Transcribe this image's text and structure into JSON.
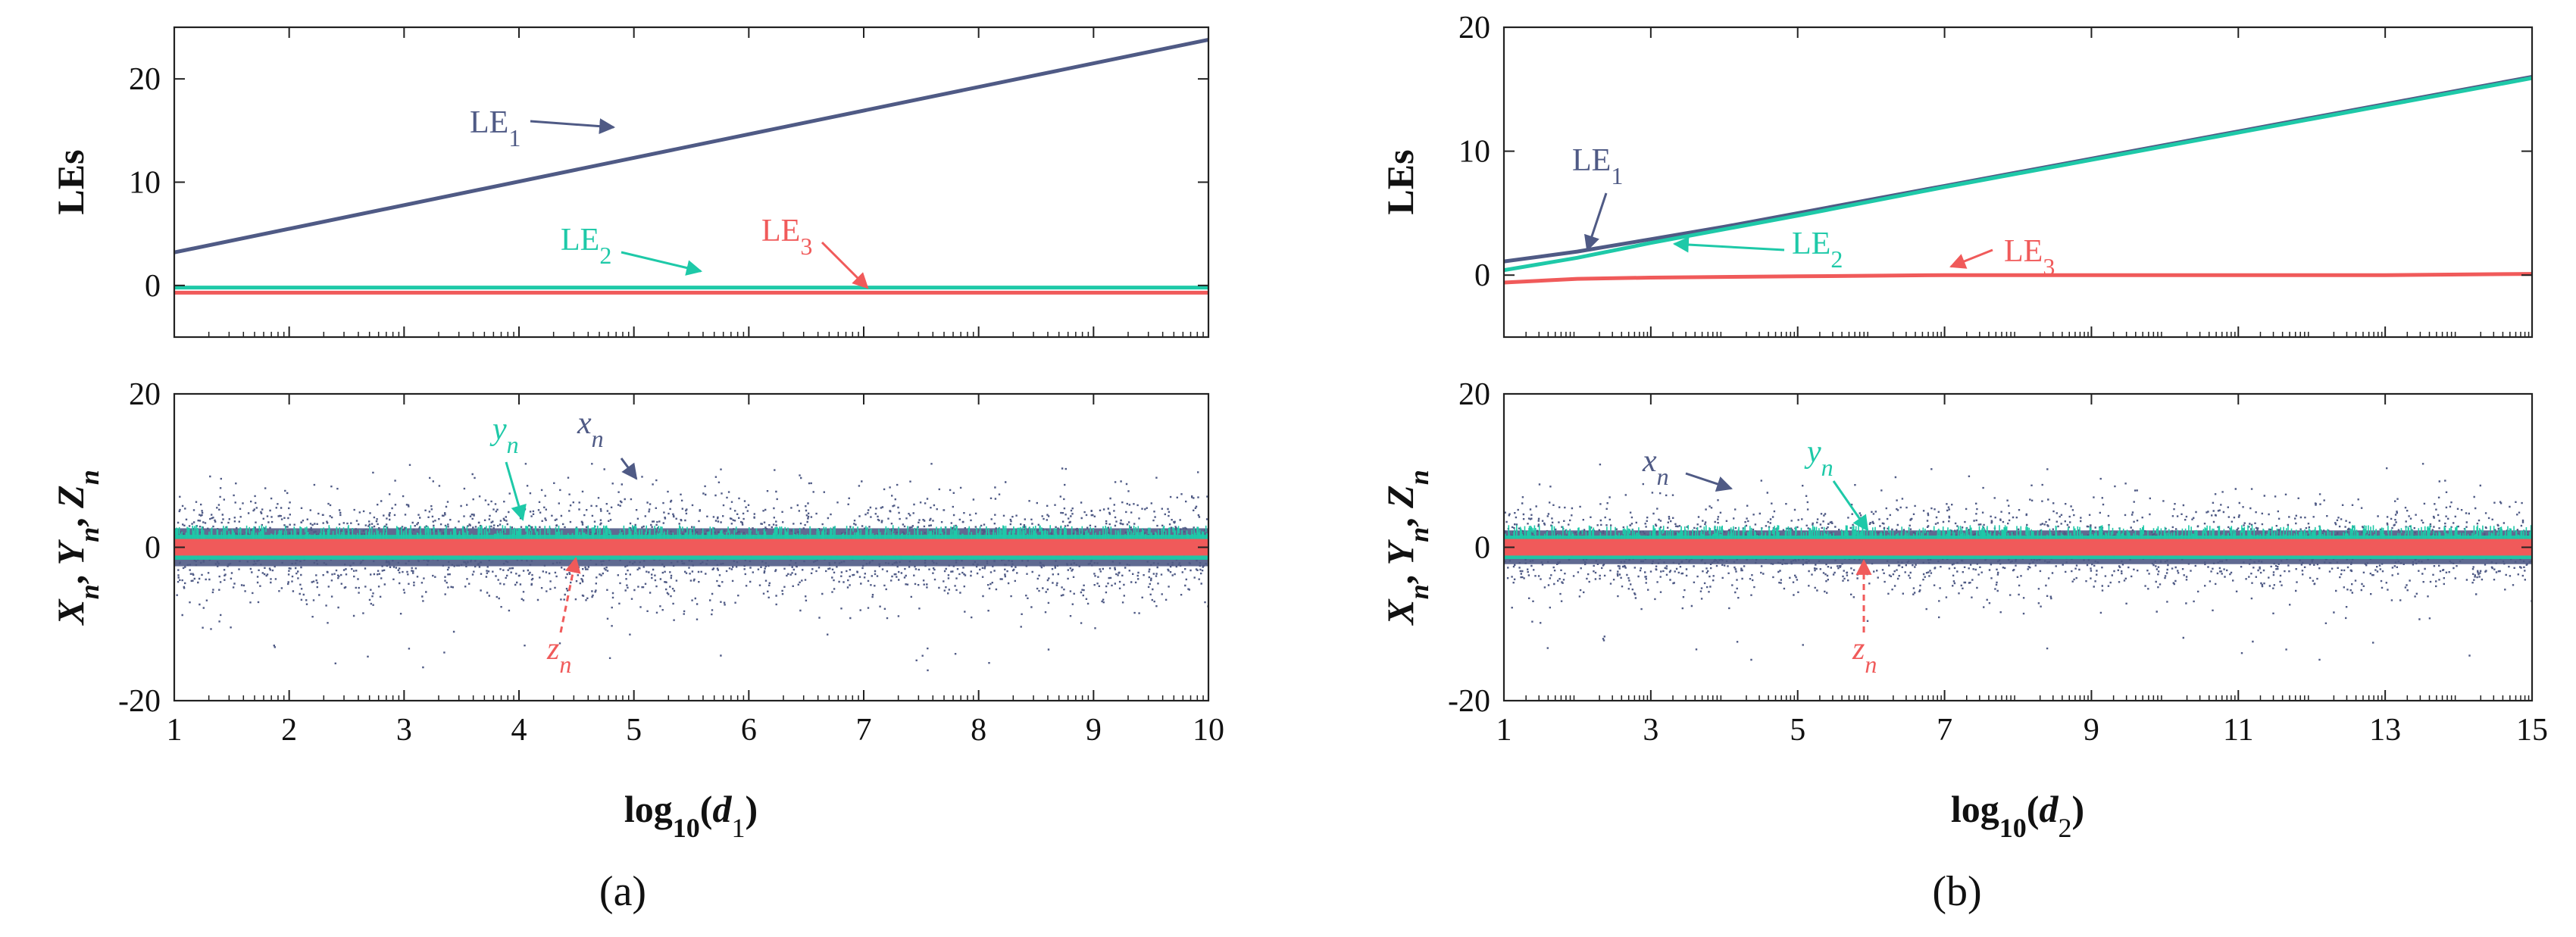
{
  "colors": {
    "x": "#4f5a85",
    "y": "#1ec9a8",
    "z": "#f05a5a",
    "axis": "#222222"
  },
  "panels": [
    {
      "id": "a",
      "caption": "(a)",
      "xlabel": {
        "pre": "log",
        "sub": "10",
        "open": "(d",
        "var_sub": "1",
        "close": ")"
      },
      "chart_data": [
        {
          "type": "line",
          "ylabel": "LEs",
          "xlim": [
            1,
            10
          ],
          "ylim": [
            -5,
            25
          ],
          "yticks": [
            0,
            10,
            20
          ],
          "xticks": [
            1,
            2,
            3,
            4,
            5,
            6,
            7,
            8,
            9,
            10
          ],
          "series": [
            {
              "name": "LE1",
              "x": [
                1,
                10
              ],
              "values": [
                3.2,
                23.8
              ]
            },
            {
              "name": "LE2",
              "x": [
                1,
                10
              ],
              "values": [
                -0.2,
                -0.2
              ]
            },
            {
              "name": "LE3",
              "x": [
                1,
                10
              ],
              "values": [
                -0.7,
                -0.7
              ]
            }
          ],
          "annotations": [
            {
              "base": "LE",
              "sub": "1",
              "series": "LE1"
            },
            {
              "base": "LE",
              "sub": "2",
              "series": "LE2"
            },
            {
              "base": "LE",
              "sub": "3",
              "series": "LE3"
            }
          ]
        },
        {
          "type": "scatter",
          "ylabel": "X_n, Y_n, Z_n",
          "xlim": [
            1,
            10
          ],
          "ylim": [
            -20,
            20
          ],
          "yticks": [
            20,
            0,
            -20
          ],
          "xticks": [
            1,
            2,
            3,
            4,
            5,
            6,
            7,
            8,
            9,
            10
          ],
          "bands": [
            {
              "name": "x_n",
              "center": 0,
              "spread": 4.5,
              "extreme": [
                -16,
                11
              ]
            },
            {
              "name": "y_n",
              "center": 0,
              "spread": 1.8,
              "extreme": [
                -2,
                3
              ]
            },
            {
              "name": "z_n",
              "center": 0,
              "spread": 0.9,
              "extreme": [
                -1,
                1
              ]
            }
          ],
          "annotations": [
            {
              "base": "x",
              "sub": "n",
              "series": "x_n"
            },
            {
              "base": "y",
              "sub": "n",
              "series": "y_n"
            },
            {
              "base": "z",
              "sub": "n",
              "series": "z_n"
            }
          ]
        }
      ]
    },
    {
      "id": "b",
      "caption": "(b)",
      "xlabel": {
        "pre": "log",
        "sub": "10",
        "open": "(d",
        "var_sub": "2",
        "close": ")"
      },
      "chart_data": [
        {
          "type": "line",
          "ylabel": "LEs",
          "xlim": [
            1,
            15
          ],
          "ylim": [
            -5,
            20
          ],
          "yticks": [
            0,
            10,
            20
          ],
          "xticks": [
            1,
            3,
            5,
            7,
            9,
            11,
            13,
            15
          ],
          "series": [
            {
              "name": "LE1",
              "x": [
                1,
                2,
                3,
                4,
                5,
                7,
                9,
                11,
                13,
                15
              ],
              "values": [
                1.1,
                1.9,
                2.9,
                3.9,
                5.0,
                7.2,
                9.4,
                11.6,
                13.8,
                16.0
              ]
            },
            {
              "name": "LE2",
              "x": [
                1,
                2,
                3,
                4,
                5,
                7,
                9,
                11,
                13,
                15
              ],
              "values": [
                0.4,
                1.4,
                2.6,
                3.7,
                4.8,
                7.1,
                9.3,
                11.5,
                13.7,
                15.9
              ]
            },
            {
              "name": "LE3",
              "x": [
                1,
                2,
                3,
                5,
                7,
                9,
                11,
                13,
                15
              ],
              "values": [
                -0.6,
                -0.3,
                -0.2,
                -0.1,
                0.0,
                0.0,
                0.0,
                0.0,
                0.1
              ]
            }
          ],
          "annotations": [
            {
              "base": "LE",
              "sub": "1",
              "series": "LE1"
            },
            {
              "base": "LE",
              "sub": "2",
              "series": "LE2"
            },
            {
              "base": "LE",
              "sub": "3",
              "series": "LE3"
            }
          ]
        },
        {
          "type": "scatter",
          "ylabel": "X_n, Y_n, Z_n",
          "xlim": [
            1,
            15
          ],
          "ylim": [
            -20,
            20
          ],
          "yticks": [
            20,
            0,
            -20
          ],
          "xticks": [
            1,
            3,
            5,
            7,
            9,
            11,
            13,
            15
          ],
          "bands": [
            {
              "name": "x_n",
              "center": 0,
              "spread": 4.0,
              "extreme": [
                -15,
                11
              ]
            },
            {
              "name": "y_n",
              "center": 0,
              "spread": 1.7,
              "extreme": [
                -2,
                3
              ]
            },
            {
              "name": "z_n",
              "center": 0,
              "spread": 0.9,
              "extreme": [
                -1,
                1
              ]
            }
          ],
          "annotations": [
            {
              "base": "x",
              "sub": "n",
              "series": "x_n"
            },
            {
              "base": "y",
              "sub": "n",
              "series": "y_n"
            },
            {
              "base": "z",
              "sub": "n",
              "series": "z_n"
            }
          ]
        }
      ]
    }
  ]
}
